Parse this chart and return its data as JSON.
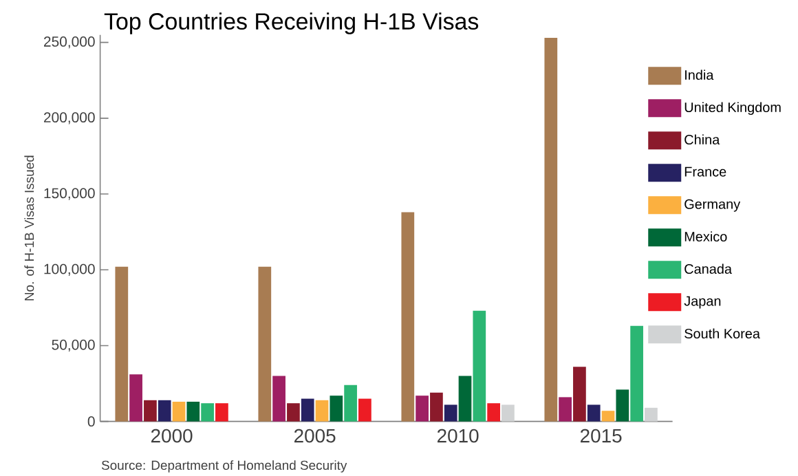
{
  "chart_data": {
    "type": "bar",
    "title": "Top Countries Receiving H-1B Visas",
    "ylabel": "No. of H-1B Visas Issued",
    "categories": [
      "2000",
      "2005",
      "2010",
      "2015"
    ],
    "series": [
      {
        "name": "India",
        "color": "#a87c52",
        "values": [
          102000,
          102000,
          138000,
          253000
        ]
      },
      {
        "name": "United Kingdom",
        "color": "#9e1f63",
        "values": [
          31000,
          30000,
          17000,
          16000
        ]
      },
      {
        "name": "China",
        "color": "#8b1a2b",
        "values": [
          14000,
          12000,
          19000,
          36000
        ]
      },
      {
        "name": "France",
        "color": "#262262",
        "values": [
          14000,
          15000,
          11000,
          11000
        ]
      },
      {
        "name": "Germany",
        "color": "#fbb040",
        "values": [
          13000,
          14000,
          null,
          7000
        ]
      },
      {
        "name": "Mexico",
        "color": "#006838",
        "values": [
          13000,
          17000,
          30000,
          21000
        ]
      },
      {
        "name": "Canada",
        "color": "#2bb673",
        "values": [
          12000,
          24000,
          73000,
          63000
        ]
      },
      {
        "name": "Japan",
        "color": "#ed1c24",
        "values": [
          12000,
          15000,
          12000,
          null
        ]
      },
      {
        "name": "South Korea",
        "color": "#d1d3d4",
        "values": [
          null,
          null,
          11000,
          9000
        ]
      }
    ],
    "ylim": [
      0,
      255000
    ],
    "yticks": [
      0,
      {
        "value": 50000,
        "label": "50,000"
      },
      {
        "value": 100000,
        "label": "100,000"
      },
      {
        "value": 150000,
        "label": "150,000"
      },
      {
        "value": 200000,
        "label": "200,000"
      },
      {
        "value": 250000,
        "label": "250,000"
      }
    ],
    "legend": "top right",
    "annotations": [
      "Source: Department of Homeland Security"
    ]
  }
}
